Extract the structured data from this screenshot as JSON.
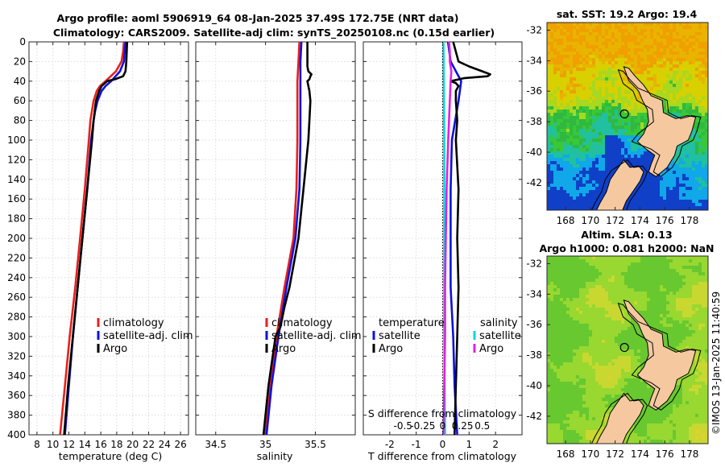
{
  "header": {
    "title_line1": "Argo profile: aoml 5906919_64 08-Jan-2025 37.49S 172.75E (NRT data)",
    "title_line2": "Climatology: CARS2009. Satellite-adj clim: synTS_20250108.nc (0.15d earlier)"
  },
  "colors": {
    "climatology": "#e8201a",
    "satellite": "#1010e0",
    "argo": "#000000",
    "temperature_diff": "#00d8e8",
    "salinity_diff": "#e020e0",
    "land": "#f5c8a0"
  },
  "watermark": "©IMOS 13-Jan-2025 11:40:59",
  "chart_data": [
    {
      "type": "line",
      "name": "temperature-profile",
      "xlabel": "temperature (deg C)",
      "ylabel": "",
      "xlim": [
        7,
        27
      ],
      "ylim": [
        0,
        400
      ],
      "y_reversed": true,
      "grid": true,
      "x_ticks": [
        "8",
        "10",
        "12",
        "14",
        "16",
        "18",
        "20",
        "22",
        "24",
        "26"
      ],
      "y_ticks": [
        "0",
        "20",
        "40",
        "60",
        "80",
        "100",
        "120",
        "140",
        "160",
        "180",
        "200",
        "220",
        "240",
        "260",
        "280",
        "300",
        "320",
        "340",
        "360",
        "380",
        "400"
      ],
      "legend": [
        "climatology",
        "satellite-adj. clim",
        "Argo"
      ],
      "legend_location": "lower-right",
      "series": [
        {
          "name": "climatology",
          "depth": [
            0,
            10,
            20,
            30,
            40,
            45,
            50,
            60,
            70,
            80,
            100,
            150,
            200,
            250,
            300,
            350,
            400
          ],
          "values": [
            18.9,
            18.8,
            18.6,
            17.9,
            16.6,
            15.9,
            15.5,
            15.1,
            14.9,
            14.7,
            14.5,
            14.0,
            13.4,
            12.8,
            12.1,
            11.5,
            10.9
          ]
        },
        {
          "name": "satellite-adj. clim",
          "depth": [
            0,
            10,
            20,
            30,
            40,
            45,
            50,
            60,
            70,
            80,
            100,
            150,
            200,
            250,
            300,
            350,
            400
          ],
          "values": [
            19.1,
            19.0,
            18.9,
            18.4,
            17.3,
            16.6,
            16.1,
            15.6,
            15.3,
            15.1,
            14.8,
            14.3,
            13.7,
            13.1,
            12.5,
            12.0,
            11.5
          ]
        },
        {
          "name": "Argo",
          "depth": [
            0,
            10,
            20,
            30,
            35,
            38,
            40,
            45,
            50,
            60,
            80,
            100,
            150,
            200,
            250,
            300,
            350,
            400
          ],
          "values": [
            19.3,
            19.25,
            19.2,
            19.1,
            18.8,
            17.8,
            16.8,
            16.1,
            15.8,
            15.4,
            15.1,
            14.9,
            14.3,
            13.7,
            13.1,
            12.5,
            11.9,
            11.4
          ]
        }
      ]
    },
    {
      "type": "line",
      "name": "salinity-profile",
      "xlabel": "salinity",
      "ylabel": "",
      "xlim": [
        34.3,
        35.9
      ],
      "ylim": [
        0,
        400
      ],
      "y_reversed": true,
      "grid": true,
      "x_ticks": [
        "34.5",
        "35",
        "35.5"
      ],
      "legend": [
        "climatology",
        "satellite-adj. clim",
        "Argo"
      ],
      "legend_location": "lower-right",
      "series": [
        {
          "name": "climatology",
          "depth": [
            0,
            20,
            40,
            60,
            100,
            150,
            200,
            250,
            300,
            350,
            400
          ],
          "values": [
            35.34,
            35.33,
            35.32,
            35.32,
            35.32,
            35.31,
            35.28,
            35.19,
            35.11,
            35.05,
            35.0
          ]
        },
        {
          "name": "satellite-adj. clim",
          "depth": [
            0,
            20,
            40,
            60,
            100,
            150,
            200,
            250,
            300,
            350,
            400
          ],
          "values": [
            35.36,
            35.35,
            35.35,
            35.35,
            35.35,
            35.34,
            35.3,
            35.21,
            35.13,
            35.06,
            35.01
          ]
        },
        {
          "name": "Argo",
          "depth": [
            0,
            10,
            20,
            25,
            30,
            33,
            35,
            38,
            40,
            45,
            50,
            60,
            80,
            100,
            150,
            200,
            250,
            270,
            290,
            300,
            350,
            400
          ],
          "values": [
            35.42,
            35.42,
            35.42,
            35.42,
            35.43,
            35.46,
            35.45,
            35.44,
            35.42,
            35.43,
            35.44,
            35.45,
            35.44,
            35.43,
            35.38,
            35.33,
            35.24,
            35.19,
            35.15,
            35.1,
            35.03,
            34.98
          ]
        }
      ]
    },
    {
      "type": "line",
      "name": "difference-profile",
      "xlabel": "T difference from climatology",
      "x2label": "S difference from climatology",
      "xlim": [
        -3,
        3
      ],
      "x2lim": [
        -1,
        1
      ],
      "ylim": [
        0,
        400
      ],
      "y_reversed": true,
      "grid": true,
      "x_ticks": [
        "-2",
        "-1",
        "0",
        "1",
        "2"
      ],
      "x2_ticks": [
        "-0.5",
        "-0.25",
        "0",
        "0.25",
        "0.5"
      ],
      "legend_left_title": "temperature",
      "legend_right_title": "salinity",
      "legend_left": [
        "satellite",
        "Argo"
      ],
      "legend_right": [
        "satellite",
        "Argo"
      ],
      "series": [
        {
          "name": "temperature-satellite",
          "axis": "T",
          "depth": [
            0,
            20,
            40,
            60,
            100,
            150,
            200,
            250,
            300,
            350,
            400
          ],
          "values": [
            0.2,
            0.3,
            0.7,
            0.6,
            0.35,
            0.3,
            0.3,
            0.3,
            0.4,
            0.45,
            0.55
          ]
        },
        {
          "name": "temperature-argo",
          "axis": "T",
          "depth": [
            0,
            10,
            20,
            25,
            30,
            33,
            35,
            37,
            40,
            42,
            45,
            50,
            60,
            80,
            100,
            150,
            200,
            250,
            300,
            350,
            400
          ],
          "values": [
            0.4,
            0.5,
            0.6,
            1.0,
            1.5,
            1.8,
            1.7,
            0.8,
            0.3,
            0.5,
            0.6,
            0.5,
            0.5,
            0.55,
            0.5,
            0.6,
            0.55,
            0.6,
            0.55,
            0.5,
            0.45
          ]
        },
        {
          "name": "salinity-satellite",
          "axis": "S",
          "depth": [
            0,
            100,
            200,
            300,
            400
          ],
          "values": [
            0.01,
            0.02,
            0.02,
            0.02,
            0.03
          ]
        },
        {
          "name": "salinity-argo",
          "axis": "S",
          "depth": [
            0,
            10,
            20,
            30,
            40,
            60,
            80,
            100,
            150,
            200,
            250,
            300,
            350,
            400
          ],
          "values": [
            0.08,
            0.09,
            0.09,
            0.11,
            0.1,
            0.09,
            0.08,
            0.07,
            0.05,
            0.04,
            0.03,
            0.03,
            0.02,
            0.01
          ]
        }
      ]
    },
    {
      "type": "heatmap",
      "name": "sst-map",
      "title": "sat. SST: 19.2 Argo: 19.4",
      "x_ticks": [
        "168",
        "170",
        "172",
        "174",
        "176",
        "178"
      ],
      "y_ticks": [
        "-32",
        "-34",
        "-36",
        "-38",
        "-40",
        "-42"
      ],
      "xlim": [
        166.5,
        179.5
      ],
      "ylim": [
        -43.8,
        -31.5
      ]
    },
    {
      "type": "heatmap",
      "name": "sla-map",
      "title_line1": "Altim. SLA: 0.13",
      "title_line2": "Argo h1000: 0.081 h2000: NaN",
      "x_ticks": [
        "168",
        "170",
        "172",
        "174",
        "176",
        "178"
      ],
      "y_ticks": [
        "-32",
        "-34",
        "-36",
        "-38",
        "-40",
        "-42"
      ],
      "xlim": [
        166.5,
        179.5
      ],
      "ylim": [
        -43.8,
        -31.5
      ]
    }
  ]
}
